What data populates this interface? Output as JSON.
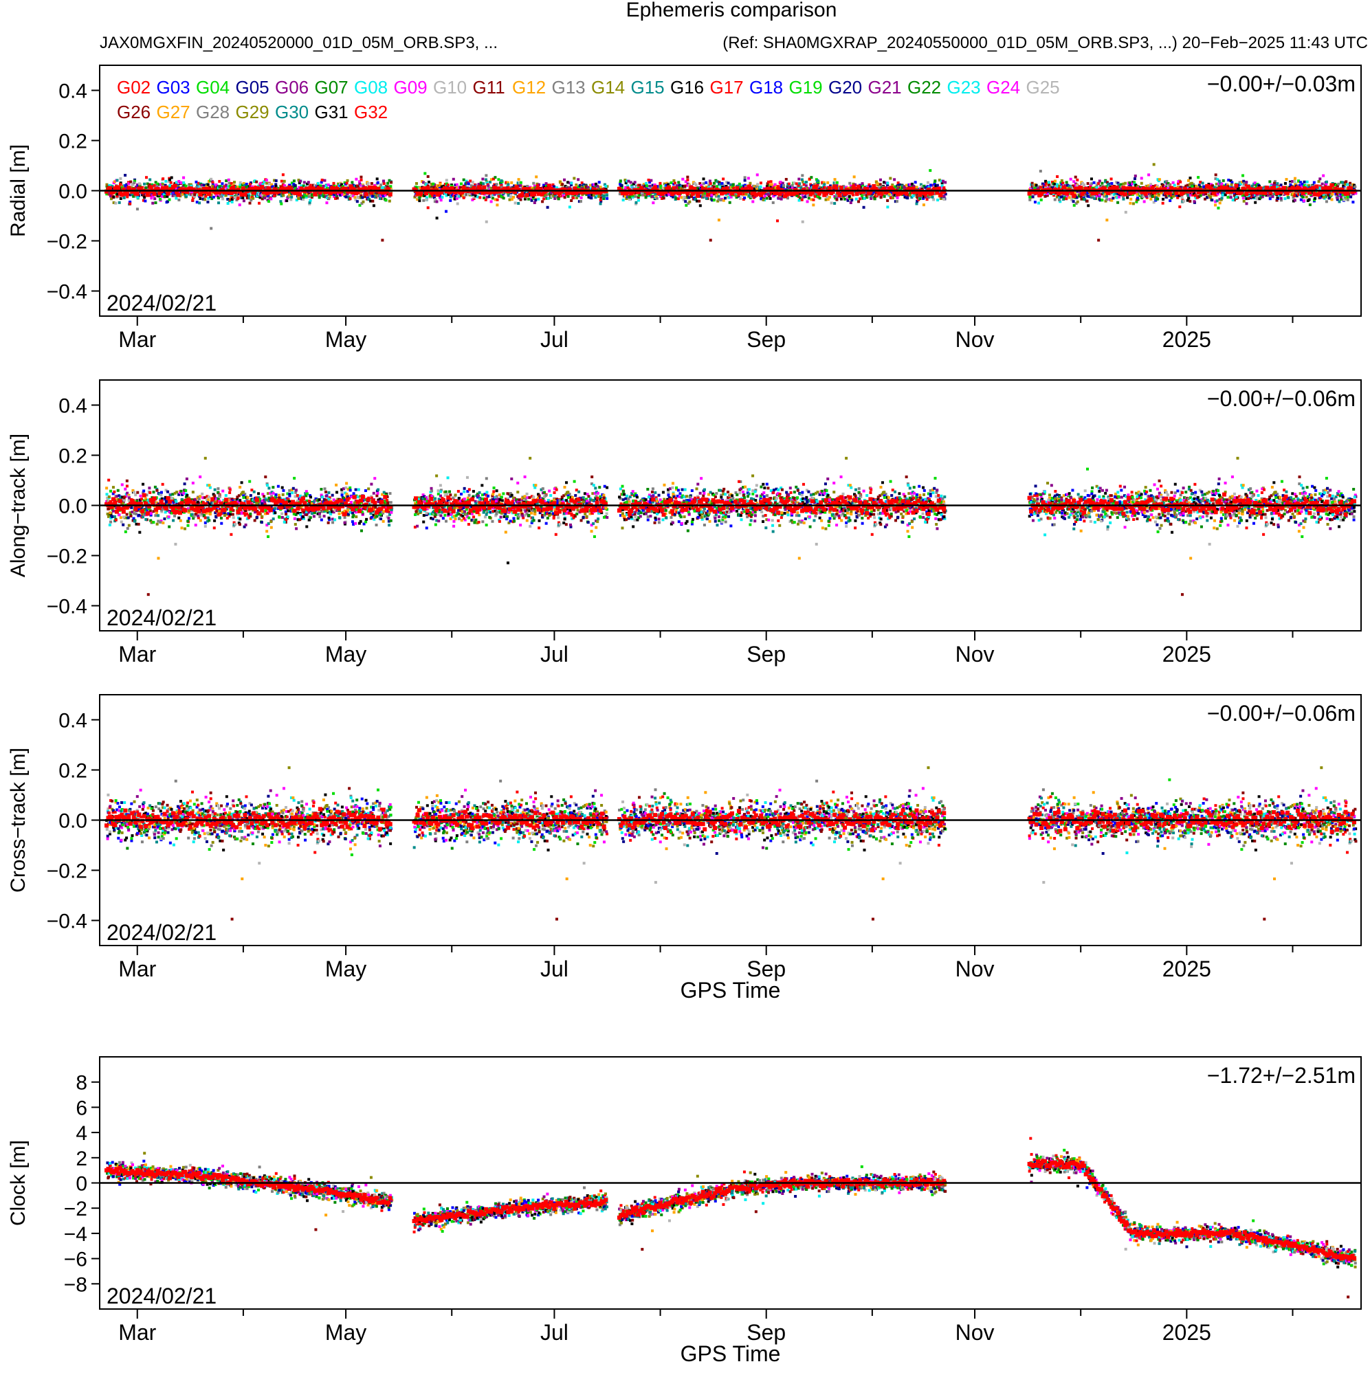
{
  "header": {
    "title": "Ephemeris comparison",
    "left_subtitle": "JAX0MGXFIN_20240520000_01D_05M_ORB.SP3, ...",
    "right_subtitle": "(Ref: SHA0MGXRAP_20240550000_01D_05M_ORB.SP3, ...) 20−Feb−2025 11:43 UTC"
  },
  "legend": {
    "items": [
      {
        "label": "G02",
        "color": "#ff0000"
      },
      {
        "label": "G03",
        "color": "#0000ff"
      },
      {
        "label": "G04",
        "color": "#00dd00"
      },
      {
        "label": "G05",
        "color": "#00008b"
      },
      {
        "label": "G06",
        "color": "#8b008b"
      },
      {
        "label": "G07",
        "color": "#008b00"
      },
      {
        "label": "G08",
        "color": "#00eeee"
      },
      {
        "label": "G09",
        "color": "#ff00ff"
      },
      {
        "label": "G10",
        "color": "#b5b5b5"
      },
      {
        "label": "G11",
        "color": "#8b0000"
      },
      {
        "label": "G12",
        "color": "#ffa500"
      },
      {
        "label": "G13",
        "color": "#808080"
      },
      {
        "label": "G14",
        "color": "#8b8b00"
      },
      {
        "label": "G15",
        "color": "#008b8b"
      },
      {
        "label": "G16",
        "color": "#000000"
      },
      {
        "label": "G17",
        "color": "#ff0000"
      },
      {
        "label": "G18",
        "color": "#0000ff"
      },
      {
        "label": "G19",
        "color": "#00dd00"
      },
      {
        "label": "G20",
        "color": "#00008b"
      },
      {
        "label": "G21",
        "color": "#8b008b"
      },
      {
        "label": "G22",
        "color": "#008b00"
      },
      {
        "label": "G23",
        "color": "#00eeee"
      },
      {
        "label": "G24",
        "color": "#ff00ff"
      },
      {
        "label": "G25",
        "color": "#b5b5b5"
      },
      {
        "label": "G26",
        "color": "#8b0000"
      },
      {
        "label": "G27",
        "color": "#ffa500"
      },
      {
        "label": "G28",
        "color": "#808080"
      },
      {
        "label": "G29",
        "color": "#8b8b00"
      },
      {
        "label": "G30",
        "color": "#008b8b"
      },
      {
        "label": "G31",
        "color": "#000000"
      },
      {
        "label": "G32",
        "color": "#ff0000"
      }
    ]
  },
  "chart_data": [
    {
      "type": "scatter",
      "id": "radial",
      "ylabel": "Radial [m]",
      "xlabel": "",
      "ylim": [
        -0.5,
        0.5
      ],
      "yticks": [
        -0.4,
        -0.2,
        0.0,
        0.2,
        0.4
      ],
      "ytick_labels": [
        "−0.4",
        "−0.2",
        "0.0",
        "0.2",
        "0.4"
      ],
      "x_range_days": [
        0,
        365
      ],
      "date_label": "2024/02/21",
      "stats": "−0.00+/−0.03m",
      "spread": 0.05,
      "reference_line": 0.0,
      "data_segments_days": [
        [
          0,
          83
        ],
        [
          90,
          146
        ],
        [
          150,
          183
        ],
        [
          184,
          190
        ],
        [
          191,
          245
        ],
        [
          270,
          365
        ]
      ]
    },
    {
      "type": "scatter",
      "id": "along",
      "ylabel": "Along−track [m]",
      "xlabel": "",
      "ylim": [
        -0.5,
        0.5
      ],
      "yticks": [
        -0.4,
        -0.2,
        0.0,
        0.2,
        0.4
      ],
      "ytick_labels": [
        "−0.4",
        "−0.2",
        "0.0",
        "0.2",
        "0.4"
      ],
      "x_range_days": [
        0,
        365
      ],
      "date_label": "2024/02/21",
      "stats": "−0.00+/−0.06m",
      "spread": 0.09,
      "reference_line": 0.0,
      "data_segments_days": [
        [
          0,
          83
        ],
        [
          90,
          146
        ],
        [
          150,
          183
        ],
        [
          184,
          190
        ],
        [
          191,
          245
        ],
        [
          270,
          365
        ]
      ]
    },
    {
      "type": "scatter",
      "id": "cross",
      "ylabel": "Cross−track [m]",
      "xlabel": "GPS Time",
      "ylim": [
        -0.5,
        0.5
      ],
      "yticks": [
        -0.4,
        -0.2,
        0.0,
        0.2,
        0.4
      ],
      "ytick_labels": [
        "−0.4",
        "−0.2",
        "0.0",
        "0.2",
        "0.4"
      ],
      "x_range_days": [
        0,
        365
      ],
      "date_label": "2024/02/21",
      "stats": "−0.00+/−0.06m",
      "spread": 0.1,
      "reference_line": 0.0,
      "data_segments_days": [
        [
          0,
          83
        ],
        [
          90,
          146
        ],
        [
          150,
          183
        ],
        [
          184,
          190
        ],
        [
          191,
          245
        ],
        [
          270,
          365
        ]
      ]
    },
    {
      "type": "scatter",
      "id": "clock",
      "ylabel": "Clock [m]",
      "xlabel": "GPS Time",
      "ylim": [
        -10,
        10
      ],
      "yticks": [
        -8,
        -6,
        -4,
        -2,
        0,
        2,
        4,
        6,
        8
      ],
      "ytick_labels": [
        "−8",
        "−6",
        "−4",
        "−2",
        "0",
        "2",
        "4",
        "6",
        "8"
      ],
      "x_range_days": [
        0,
        365
      ],
      "date_label": "2024/02/21",
      "stats": "−1.72+/−2.51m",
      "spread": 0.8,
      "reference_line": 0.0,
      "data_segments_days": [
        [
          0,
          83
        ],
        [
          90,
          146
        ],
        [
          150,
          183
        ],
        [
          184,
          190
        ],
        [
          191,
          245
        ],
        [
          270,
          365
        ]
      ],
      "trend_days": [
        0,
        30,
        60,
        83,
        90,
        120,
        146,
        150,
        183,
        200,
        245,
        270,
        285,
        300,
        330,
        365
      ],
      "trend_values": [
        1,
        0.5,
        -0.5,
        -1.5,
        -3,
        -2,
        -1.5,
        -2.5,
        -0.5,
        0,
        0,
        1.5,
        1.5,
        -4,
        -4,
        -6
      ]
    }
  ],
  "x_axis": {
    "tick_days": [
      9,
      70,
      131,
      193,
      254,
      316
    ],
    "tick_labels": [
      "Mar",
      "May",
      "Jul",
      "Sep",
      "Nov",
      "2025"
    ],
    "minor_tick_days": [
      40,
      101,
      162,
      224,
      285,
      347
    ]
  }
}
